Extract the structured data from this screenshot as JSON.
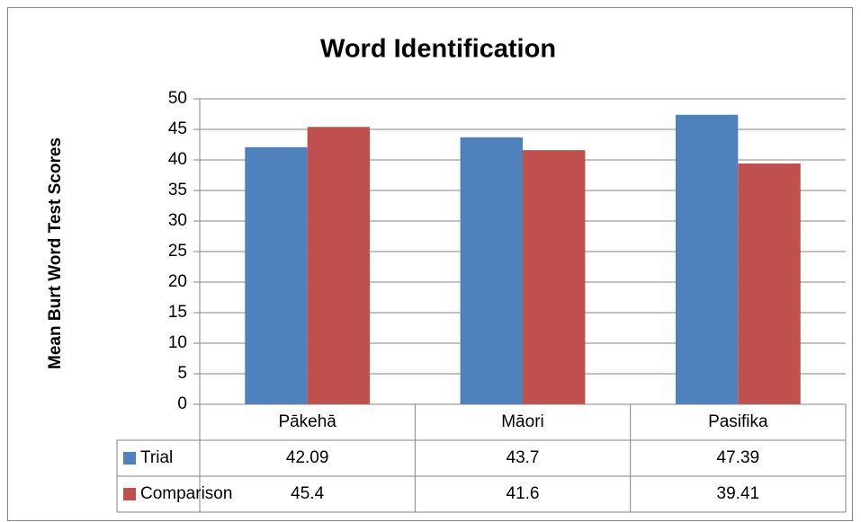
{
  "chart_data": {
    "type": "bar",
    "title": "Word Identification",
    "y_label": "Mean Burt Word Test Scores",
    "categories": [
      "Pākehā",
      "Māori",
      "Pasifika"
    ],
    "series": [
      {
        "name": "Trial",
        "color": "#4f81bd",
        "values": [
          42.09,
          43.7,
          47.39
        ]
      },
      {
        "name": "Comparison",
        "color": "#c0504d",
        "values": [
          45.4,
          41.6,
          39.41
        ]
      }
    ],
    "ylim": [
      0,
      50
    ],
    "yticks": [
      0,
      5,
      10,
      15,
      20,
      25,
      30,
      35,
      40,
      45,
      50
    ],
    "grid": true,
    "data_table": true
  }
}
